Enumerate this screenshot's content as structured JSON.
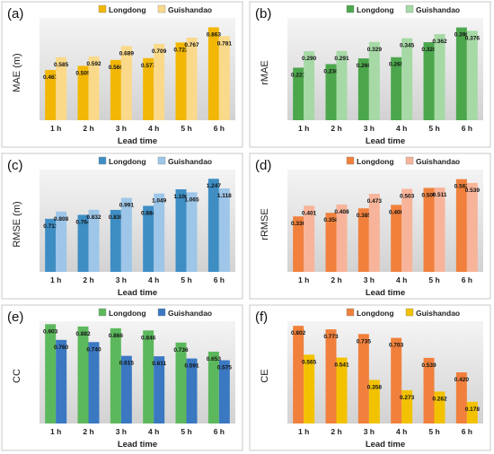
{
  "figure": {
    "panels": [
      {
        "id": "a",
        "chart_data": {
          "type": "bar",
          "panel_label": "(a)",
          "categories": [
            "1 h",
            "2 h",
            "3 h",
            "4 h",
            "5 h",
            "6 h"
          ],
          "series": [
            {
              "name": "Longdong",
              "values": [
                0.467,
                0.505,
                0.56,
                0.577,
                0.722,
                0.863
              ],
              "color": "#F2B705"
            },
            {
              "name": "Guishandao",
              "values": [
                0.585,
                0.592,
                0.689,
                0.709,
                0.767,
                0.781
              ],
              "color": "#FAD98A"
            }
          ],
          "xlabel": "Lead time",
          "ylabel": "MAE (m)",
          "ylim": [
            0,
            0.95
          ],
          "grid": false,
          "legend": "top",
          "value_labels": true
        }
      },
      {
        "id": "b",
        "chart_data": {
          "type": "bar",
          "panel_label": "(b)",
          "categories": [
            "1 h",
            "2 h",
            "3 h",
            "4 h",
            "5 h",
            "6 h"
          ],
          "series": [
            {
              "name": "Longdong",
              "values": [
                0.221,
                0.236,
                0.26,
                0.265,
                0.328,
                0.39
              ],
              "color": "#4CA64C"
            },
            {
              "name": "Guishandao",
              "values": [
                0.29,
                0.291,
                0.329,
                0.345,
                0.362,
                0.376
              ],
              "color": "#A6D9A6"
            }
          ],
          "xlabel": "Lead time",
          "ylabel": "rMAE",
          "ylim": [
            0,
            0.43
          ],
          "grid": false,
          "legend": "top",
          "value_labels": true
        }
      },
      {
        "id": "c",
        "chart_data": {
          "type": "bar",
          "panel_label": "(c)",
          "categories": [
            "1 h",
            "2 h",
            "3 h",
            "4 h",
            "5 h",
            "6 h"
          ],
          "series": [
            {
              "name": "Longdong",
              "values": [
                0.711,
                0.764,
                0.83,
                0.884,
                1.106,
                1.247
              ],
              "color": "#3E8EC4"
            },
            {
              "name": "Guishandao",
              "values": [
                0.808,
                0.832,
                0.991,
                1.049,
                1.065,
                1.118
              ],
              "color": "#9DC6E8"
            }
          ],
          "xlabel": "Lead time",
          "ylabel": "RMSE (m)",
          "ylim": [
            0,
            1.37
          ],
          "grid": false,
          "legend": "top",
          "value_labels": true
        }
      },
      {
        "id": "d",
        "chart_data": {
          "type": "bar",
          "panel_label": "(d)",
          "categories": [
            "1 h",
            "2 h",
            "3 h",
            "4 h",
            "5 h",
            "6 h"
          ],
          "series": [
            {
              "name": "Longdong",
              "values": [
                0.336,
                0.358,
                0.385,
                0.406,
                0.509,
                0.562
              ],
              "color": "#F0803C"
            },
            {
              "name": "Guishandao",
              "values": [
                0.401,
                0.408,
                0.473,
                0.503,
                0.511,
                0.539
              ],
              "color": "#F8B49A"
            }
          ],
          "xlabel": "Lead time",
          "ylabel": "rRMSE",
          "ylim": [
            0,
            0.62
          ],
          "grid": false,
          "legend": "top",
          "value_labels": true
        }
      },
      {
        "id": "e",
        "chart_data": {
          "type": "bar",
          "panel_label": "(e)",
          "categories": [
            "1 h",
            "2 h",
            "3 h",
            "4 h",
            "5 h",
            "6 h"
          ],
          "series": [
            {
              "name": "Longdong",
              "values": [
                0.903,
                0.882,
                0.866,
                0.846,
                0.736,
                0.653
              ],
              "color": "#5CB85C"
            },
            {
              "name": "Guishandao",
              "values": [
                0.76,
                0.74,
                0.615,
                0.611,
                0.591,
                0.575
              ],
              "color": "#3A78C2"
            }
          ],
          "xlabel": "Lead time",
          "ylabel": "CC",
          "ylim": [
            0,
            0.93
          ],
          "grid": false,
          "legend": "top",
          "value_labels": true
        }
      },
      {
        "id": "f",
        "chart_data": {
          "type": "bar",
          "panel_label": "(f)",
          "categories": [
            "1 h",
            "2 h",
            "3 h",
            "4 h",
            "5 h",
            "6 h"
          ],
          "series": [
            {
              "name": "Longdong",
              "values": [
                0.802,
                0.773,
                0.735,
                0.703,
                0.539,
                0.42
              ],
              "color": "#F0803C"
            },
            {
              "name": "Guishandao",
              "values": [
                0.565,
                0.541,
                0.358,
                0.273,
                0.262,
                0.178
              ],
              "color": "#F2C200"
            }
          ],
          "xlabel": "Lead time",
          "ylabel": "CE",
          "ylim": [
            0,
            0.84
          ],
          "grid": false,
          "legend": "top",
          "value_labels": true
        }
      }
    ]
  }
}
